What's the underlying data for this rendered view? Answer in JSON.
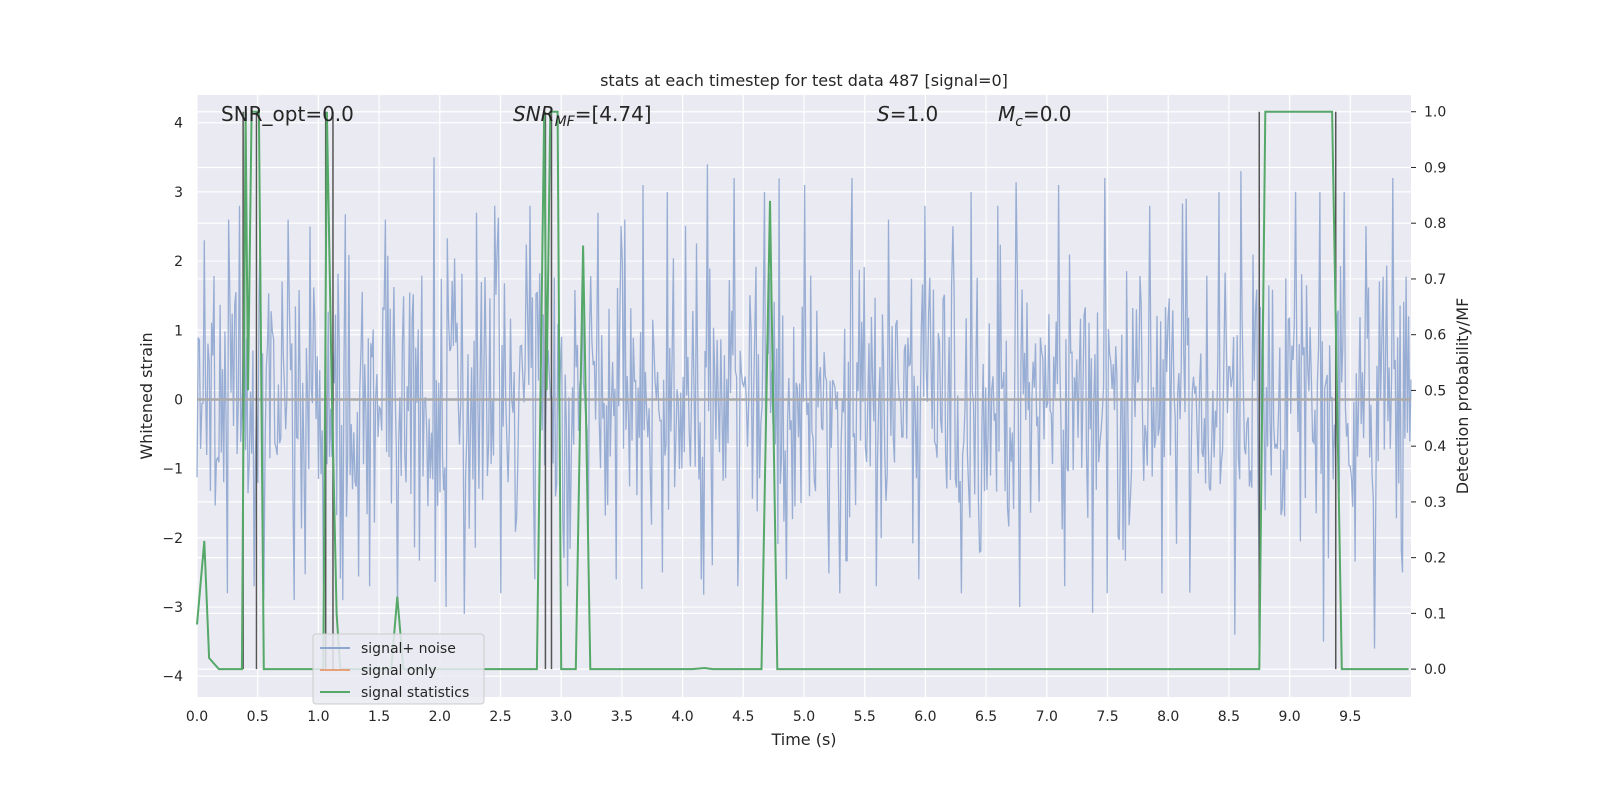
{
  "chart_data": {
    "type": "line",
    "title": "stats at each timestep for test data 487 [signal=0]",
    "xlabel": "Time (s)",
    "ylabel": "Whitened strain",
    "ylabel_right": "Detection probability/MF",
    "xlim": [
      0.0,
      10.0
    ],
    "ylim": [
      -4.3,
      4.4
    ],
    "ylim_right": [
      -0.05,
      1.03
    ],
    "xticks": [
      0.0,
      0.5,
      1.0,
      1.5,
      2.0,
      2.5,
      3.0,
      3.5,
      4.0,
      4.5,
      5.0,
      5.5,
      6.0,
      6.5,
      7.0,
      7.5,
      8.0,
      8.5,
      9.0,
      9.5
    ],
    "xtick_labels": [
      "0.0",
      "0.5",
      "1.0",
      "1.5",
      "2.0",
      "2.5",
      "3.0",
      "3.5",
      "4.0",
      "4.5",
      "5.0",
      "5.5",
      "6.0",
      "6.5",
      "7.0",
      "7.5",
      "8.0",
      "8.5",
      "9.0",
      "9.5"
    ],
    "yticks_left": [
      -4,
      -3,
      -2,
      -1,
      0,
      1,
      2,
      3,
      4
    ],
    "ytick_labels_left": [
      "−4",
      "−3",
      "−2",
      "−1",
      "0",
      "1",
      "2",
      "3",
      "4"
    ],
    "yticks_right": [
      0.0,
      0.1,
      0.2,
      0.3,
      0.4,
      0.5,
      0.6,
      0.7,
      0.8,
      0.9,
      1.0
    ],
    "ytick_labels_right": [
      "0.0",
      "0.1",
      "0.2",
      "0.3",
      "0.4",
      "0.5",
      "0.6",
      "0.7",
      "0.8",
      "0.9",
      "1.0"
    ],
    "grid": true,
    "legend_position": "lower-left",
    "annotations": {
      "snr_opt": "SNR_opt=0.0",
      "snr_mf_main": "SNR",
      "snr_mf_sub": "MF",
      "snr_mf_value": "=[4.74]",
      "s_main": "S",
      "s_value": "=1.0",
      "mc_main": "M",
      "mc_sub": "c",
      "mc_value": "=0.0"
    },
    "series": [
      {
        "name": "signal+ noise",
        "color": "#8fa6cf",
        "axis": "left",
        "description": "whitened noise-like strain, roughly symmetric about 0 with envelope about ±1.6 and spikes up to ±4",
        "envelope": 1.6,
        "peaks_positive": [
          [
            0.06,
            2.3
          ],
          [
            0.26,
            2.6
          ],
          [
            0.35,
            2.8
          ],
          [
            0.52,
            2.5
          ],
          [
            0.75,
            2.6
          ],
          [
            0.93,
            2.5
          ],
          [
            1.2,
            2.9
          ],
          [
            1.55,
            2.6
          ],
          [
            1.95,
            3.5
          ],
          [
            2.3,
            2.7
          ],
          [
            2.45,
            2.8
          ],
          [
            2.74,
            2.8
          ],
          [
            3.3,
            2.7
          ],
          [
            3.52,
            2.6
          ],
          [
            3.67,
            3.1
          ],
          [
            3.87,
            3.0
          ],
          [
            4.2,
            3.4
          ],
          [
            4.42,
            3.2
          ],
          [
            4.67,
            3.0
          ],
          [
            5.0,
            3.1
          ],
          [
            5.4,
            3.2
          ],
          [
            5.7,
            2.6
          ],
          [
            6.0,
            2.8
          ],
          [
            6.38,
            3.0
          ],
          [
            6.6,
            2.8
          ],
          [
            7.1,
            3.1
          ],
          [
            7.48,
            3.2
          ],
          [
            7.85,
            2.8
          ],
          [
            8.15,
            2.9
          ],
          [
            8.42,
            3.0
          ],
          [
            8.6,
            3.3
          ],
          [
            9.05,
            3.0
          ],
          [
            9.25,
            3.0
          ],
          [
            9.45,
            3.0
          ],
          [
            9.85,
            3.2
          ]
        ],
        "peaks_negative": [
          [
            0.25,
            -2.8
          ],
          [
            0.47,
            -2.7
          ],
          [
            0.8,
            -2.9
          ],
          [
            1.2,
            -2.9
          ],
          [
            1.42,
            -2.7
          ],
          [
            1.65,
            -3.0
          ],
          [
            2.05,
            -3.0
          ],
          [
            2.2,
            -3.1
          ],
          [
            2.5,
            -2.8
          ],
          [
            2.78,
            -2.6
          ],
          [
            3.05,
            -2.7
          ],
          [
            3.45,
            -2.6
          ],
          [
            3.83,
            -2.5
          ],
          [
            4.15,
            -2.6
          ],
          [
            4.45,
            -2.7
          ],
          [
            4.85,
            -2.6
          ],
          [
            5.3,
            -2.8
          ],
          [
            5.6,
            -2.7
          ],
          [
            5.95,
            -2.6
          ],
          [
            6.3,
            -2.8
          ],
          [
            6.78,
            -3.0
          ],
          [
            7.15,
            -2.7
          ],
          [
            7.5,
            -2.8
          ],
          [
            7.95,
            -2.8
          ],
          [
            8.55,
            -3.4
          ],
          [
            8.75,
            -2.5
          ],
          [
            9.28,
            -3.5
          ],
          [
            9.7,
            -3.6
          ],
          [
            9.93,
            -2.5
          ]
        ]
      },
      {
        "name": "signal only",
        "color": "#e6a07a",
        "axis": "left",
        "x": [
          0.0,
          10.0
        ],
        "y": [
          0.0,
          0.0
        ]
      },
      {
        "name": "signal statistics",
        "color": "#55a868",
        "axis": "right",
        "x": [
          0.0,
          0.06,
          0.1,
          0.18,
          0.37,
          0.4,
          0.42,
          0.45,
          0.47,
          0.51,
          0.55,
          0.58,
          1.04,
          1.07,
          1.11,
          1.15,
          1.18,
          1.25,
          1.6,
          1.65,
          1.7,
          1.75,
          2.8,
          2.86,
          2.88,
          2.91,
          2.97,
          3.0,
          3.12,
          3.18,
          3.24,
          3.3,
          4.08,
          4.18,
          4.25,
          4.6,
          4.65,
          4.72,
          4.78,
          8.75,
          8.8,
          8.95,
          9.35,
          9.43,
          9.98
        ],
        "y": [
          0.08,
          0.23,
          0.02,
          0.0,
          0.0,
          1.0,
          0.5,
          1.0,
          1.0,
          1.0,
          0.0,
          0.0,
          0.0,
          1.0,
          0.5,
          0.1,
          0.0,
          0.0,
          0.0,
          0.13,
          0.0,
          0.0,
          0.0,
          1.0,
          0.5,
          1.0,
          1.0,
          0.0,
          0.0,
          0.76,
          0.0,
          0.0,
          0.0,
          0.002,
          0.0,
          0.0,
          0.0,
          0.84,
          0.0,
          0.0,
          1.0,
          1.0,
          1.0,
          0.0,
          0.0
        ]
      }
    ],
    "markers": {
      "color": "#555555",
      "pairs": [
        [
          0.38,
          0.49
        ],
        [
          1.06,
          1.12
        ],
        [
          2.87,
          2.92
        ],
        [
          8.75,
          9.38
        ]
      ],
      "y_top_right": 1.0,
      "y_bottom_right": 0.0
    }
  }
}
